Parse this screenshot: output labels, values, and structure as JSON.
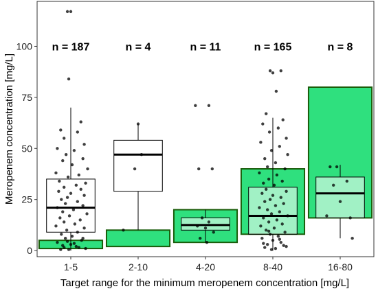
{
  "chart_data": {
    "type": "box",
    "xlabel": "Target range for the minimum meropenem concentration [mg/L]",
    "ylabel": "Meropenem concentration [mg/L]",
    "ylim": [
      -3,
      122
    ],
    "yticks": [
      0,
      25,
      50,
      75,
      100
    ],
    "grid": false,
    "target_fill_color": "#2fe07e",
    "target_border_color": "#1a5c0a",
    "categories": [
      "1-5",
      "2-10",
      "4-20",
      "8-40",
      "16-80"
    ],
    "n_labels": [
      "n = 187",
      "n = 4",
      "n = 11",
      "n = 165",
      "n = 8"
    ],
    "n_label_y": 100,
    "target_ranges": [
      [
        1,
        5
      ],
      [
        2,
        10
      ],
      [
        4,
        20
      ],
      [
        8,
        40
      ],
      [
        16,
        80
      ]
    ],
    "boxes": [
      {
        "whisker_low": 0,
        "q1": 9,
        "median": 21,
        "q3": 35,
        "whisker_high": 70
      },
      {
        "whisker_low": 10,
        "q1": 29,
        "median": 47,
        "q3": 54,
        "whisker_high": 62
      },
      {
        "whisker_low": 4,
        "q1": 10,
        "median": 12.5,
        "q3": 16,
        "whisker_high": 20
      },
      {
        "whisker_low": 0,
        "q1": 8,
        "median": 17,
        "q3": 31,
        "whisker_high": 65
      },
      {
        "whisker_low": 6,
        "q1": 16,
        "median": 28,
        "q3": 36,
        "whisker_high": 42
      }
    ],
    "points": [
      [
        0.95,
        117
      ],
      [
        1.0,
        117
      ],
      [
        0.97,
        84
      ],
      [
        1.15,
        63
      ],
      [
        0.85,
        59
      ],
      [
        1.1,
        58
      ],
      [
        0.9,
        55
      ],
      [
        1.2,
        52
      ],
      [
        0.8,
        50
      ],
      [
        1.05,
        49
      ],
      [
        0.93,
        47
      ],
      [
        1.18,
        45
      ],
      [
        0.88,
        44
      ],
      [
        1.02,
        42
      ],
      [
        1.25,
        40
      ],
      [
        0.78,
        38
      ],
      [
        1.12,
        37
      ],
      [
        0.96,
        36
      ],
      [
        0.83,
        34
      ],
      [
        1.22,
        33
      ],
      [
        1.08,
        32
      ],
      [
        0.9,
        31
      ],
      [
        1.15,
        30
      ],
      [
        0.82,
        29
      ],
      [
        1.0,
        28
      ],
      [
        1.2,
        27
      ],
      [
        0.95,
        26
      ],
      [
        0.86,
        25
      ],
      [
        1.1,
        24
      ],
      [
        0.92,
        23
      ],
      [
        1.18,
        22
      ],
      [
        0.8,
        21
      ],
      [
        1.04,
        20
      ],
      [
        0.88,
        19
      ],
      [
        1.24,
        18
      ],
      [
        0.98,
        17
      ],
      [
        0.84,
        16
      ],
      [
        1.14,
        15
      ],
      [
        0.9,
        14
      ],
      [
        1.06,
        13
      ],
      [
        0.78,
        12
      ],
      [
        1.2,
        11
      ],
      [
        0.94,
        10
      ],
      [
        1.1,
        9
      ],
      [
        0.86,
        8
      ],
      [
        1.02,
        7
      ],
      [
        0.92,
        6
      ],
      [
        1.16,
        5
      ],
      [
        0.8,
        4
      ],
      [
        1.0,
        3
      ],
      [
        1.08,
        2
      ],
      [
        0.9,
        1.5
      ],
      [
        1.22,
        1
      ],
      [
        0.97,
        0.5
      ],
      [
        0.85,
        0.5
      ],
      [
        1.12,
        1.5
      ],
      [
        0.88,
        2.5
      ],
      [
        1.05,
        3.5
      ],
      [
        0.95,
        4.5
      ],
      [
        1.18,
        6
      ],
      [
        2.0,
        62
      ],
      [
        2.05,
        47
      ],
      [
        1.95,
        40
      ],
      [
        1.78,
        10
      ],
      [
        2.85,
        71
      ],
      [
        3.05,
        71
      ],
      [
        2.9,
        40
      ],
      [
        3.1,
        40
      ],
      [
        2.95,
        16
      ],
      [
        3.05,
        14
      ],
      [
        2.88,
        12
      ],
      [
        3.0,
        11
      ],
      [
        3.12,
        9
      ],
      [
        2.92,
        6
      ],
      [
        3.02,
        4
      ],
      [
        3.96,
        88
      ],
      [
        4.12,
        88
      ],
      [
        4.0,
        87
      ],
      [
        4.05,
        78
      ],
      [
        3.9,
        67
      ],
      [
        4.15,
        64
      ],
      [
        3.85,
        62
      ],
      [
        4.08,
        60
      ],
      [
        3.95,
        58
      ],
      [
        4.2,
        55
      ],
      [
        3.82,
        53
      ],
      [
        4.1,
        51
      ],
      [
        3.98,
        49
      ],
      [
        4.22,
        47
      ],
      [
        3.88,
        45
      ],
      [
        4.04,
        43
      ],
      [
        3.92,
        41
      ],
      [
        4.18,
        40
      ],
      [
        3.8,
        38
      ],
      [
        4.06,
        37
      ],
      [
        3.94,
        35
      ],
      [
        4.14,
        34
      ],
      [
        3.86,
        33
      ],
      [
        4.02,
        32
      ],
      [
        3.9,
        30
      ],
      [
        4.2,
        29
      ],
      [
        3.84,
        28
      ],
      [
        4.0,
        27
      ],
      [
        4.12,
        26
      ],
      [
        3.96,
        25
      ],
      [
        3.88,
        24
      ],
      [
        4.16,
        23
      ],
      [
        4.04,
        22
      ],
      [
        3.8,
        21
      ],
      [
        3.92,
        20
      ],
      [
        4.1,
        19
      ],
      [
        3.98,
        18
      ],
      [
        4.22,
        17
      ],
      [
        3.86,
        16
      ],
      [
        4.06,
        15
      ],
      [
        3.94,
        14
      ],
      [
        4.14,
        13
      ],
      [
        3.82,
        12
      ],
      [
        4.02,
        11
      ],
      [
        3.9,
        10
      ],
      [
        4.18,
        9
      ],
      [
        3.96,
        8
      ],
      [
        4.08,
        7
      ],
      [
        3.84,
        6
      ],
      [
        4.0,
        5
      ],
      [
        4.12,
        4
      ],
      [
        3.92,
        3
      ],
      [
        4.2,
        2
      ],
      [
        3.88,
        1.5
      ],
      [
        4.04,
        1
      ],
      [
        3.98,
        0.5
      ],
      [
        4.16,
        2.5
      ],
      [
        3.86,
        3.5
      ],
      [
        4.1,
        5.5
      ],
      [
        3.94,
        9.5
      ],
      [
        4.85,
        41
      ],
      [
        4.95,
        41
      ],
      [
        5.1,
        34
      ],
      [
        4.9,
        32
      ],
      [
        5.0,
        24
      ],
      [
        4.8,
        17
      ],
      [
        5.15,
        16
      ],
      [
        5.18,
        6
      ]
    ]
  }
}
